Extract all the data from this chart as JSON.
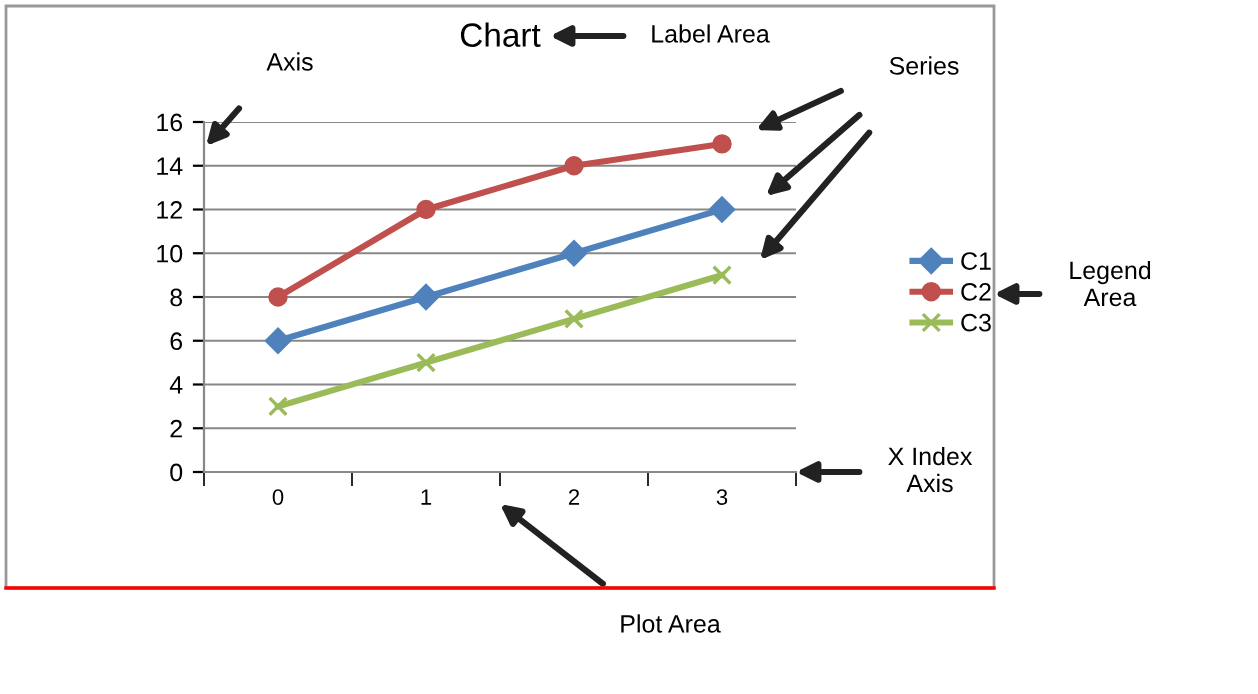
{
  "chart_data": {
    "type": "line",
    "title": "Chart",
    "categories": [
      "0",
      "1",
      "2",
      "3"
    ],
    "series": [
      {
        "name": "C1",
        "color": "#4f81bd",
        "marker": "diamond",
        "values": [
          6,
          8,
          10,
          12
        ]
      },
      {
        "name": "C2",
        "color": "#c0504d",
        "marker": "circle",
        "values": [
          8,
          12,
          14,
          15
        ]
      },
      {
        "name": "C3",
        "color": "#9bbb59",
        "marker": "cross",
        "values": [
          3,
          5,
          7,
          9
        ]
      }
    ],
    "ylim": [
      0,
      16
    ],
    "yticks": [
      0,
      2,
      4,
      6,
      8,
      10,
      12,
      14,
      16
    ],
    "grid": "y",
    "legend": "right",
    "line_style": "solid",
    "annotations": [
      "Label Area",
      "Axis",
      "Series",
      "Legend\nArea",
      "X Index\nAxis",
      "Plot Area"
    ]
  }
}
